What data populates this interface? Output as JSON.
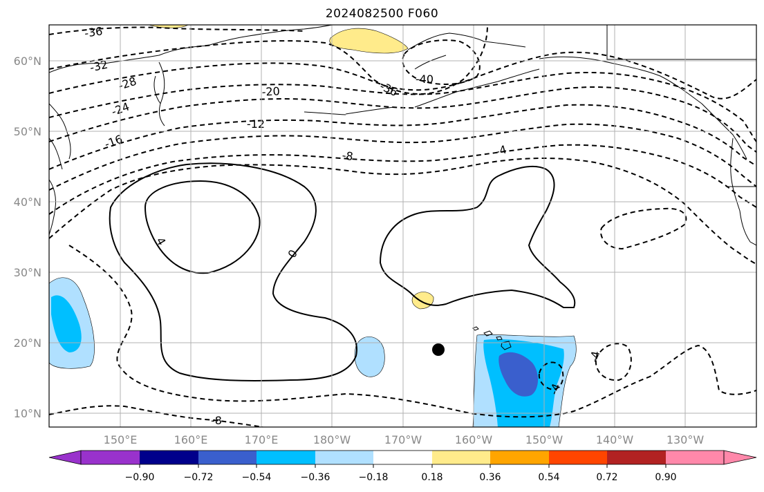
{
  "title": "2024082500 F060",
  "map": {
    "lon_ticks": [
      "150°E",
      "160°E",
      "170°E",
      "180°W",
      "170°W",
      "160°W",
      "150°W",
      "140°W",
      "130°W"
    ],
    "lat_ticks": [
      "60°N",
      "50°N",
      "40°N",
      "30°N",
      "20°N",
      "10°N"
    ],
    "contour_labels": [
      "-36",
      "-32",
      "-28",
      "-24",
      "-20",
      "-16",
      "-12",
      "-8",
      "-4",
      "0",
      "4",
      "-40",
      "-36",
      "-8",
      "-4",
      "-4"
    ],
    "colors": {
      "contour": "#000000",
      "land_outline": "#000000",
      "grid": "#b0b0b0"
    },
    "marker": {
      "lat": 19,
      "lon": -165,
      "icon": "black-dot"
    }
  },
  "colorbar": {
    "tick_labels": [
      "−0.90",
      "−0.72",
      "−0.54",
      "−0.36",
      "−0.18",
      "0.18",
      "0.36",
      "0.54",
      "0.72",
      "0.90"
    ],
    "colors": [
      "#9932cc",
      "#00008b",
      "#3a5fcd",
      "#00bfff",
      "#b0e0ff",
      "#ffffff",
      "#ffeb8b",
      "#ffa500",
      "#ff4500",
      "#b22222",
      "#ff88aa"
    ]
  }
}
